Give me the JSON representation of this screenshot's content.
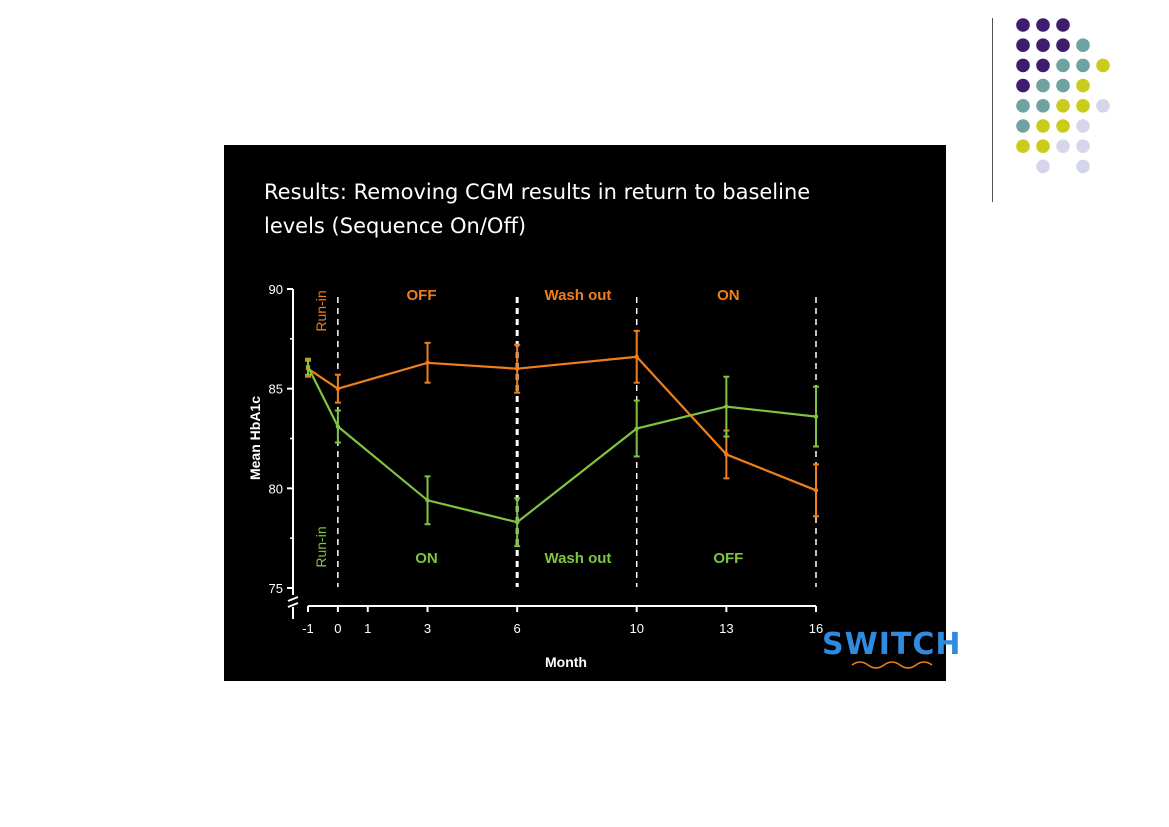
{
  "title_line1": "Results:  Removing CGM results in return to baseline",
  "title_line2": "levels (Sequence On/Off)",
  "logo_text": "SWITCH",
  "colors": {
    "orange": "#f07f1b",
    "green": "#80c341",
    "dot_purple": "#3f1d6e",
    "dot_teal": "#6fa3a2",
    "dot_yellow": "#c9cc1a",
    "dot_lavender": "#d6d6ea"
  },
  "chart_data": {
    "type": "line",
    "xlabel": "Month",
    "ylabel": "Mean HbA1c",
    "x_ticks": [
      -1,
      0,
      1,
      3,
      6,
      10,
      13,
      16
    ],
    "y_ticks": [
      75,
      80,
      85,
      90
    ],
    "ylim": [
      75,
      90
    ],
    "xlim": [
      -1,
      16
    ],
    "grid": false,
    "dividers_at": [
      0,
      6,
      10,
      16
    ],
    "series": [
      {
        "key": "orange",
        "x": [
          -1,
          0,
          3,
          6,
          10,
          13,
          16
        ],
        "y": [
          86.0,
          85.0,
          86.3,
          86.0,
          86.6,
          81.7,
          79.9
        ],
        "err": [
          0.4,
          0.7,
          1.0,
          1.2,
          1.3,
          1.2,
          1.3
        ]
      },
      {
        "key": "green",
        "x": [
          -1,
          0,
          3,
          6,
          10,
          13,
          16
        ],
        "y": [
          86.1,
          83.1,
          79.4,
          78.3,
          83.0,
          84.1,
          83.6
        ],
        "err": [
          0.4,
          0.8,
          1.2,
          1.2,
          1.4,
          1.5,
          1.5
        ]
      }
    ],
    "period_labels_top": [
      "Run-in",
      "OFF",
      "Wash out",
      "ON"
    ],
    "period_labels_bottom": [
      "Run-in",
      "ON",
      "Wash out",
      "OFF"
    ]
  }
}
